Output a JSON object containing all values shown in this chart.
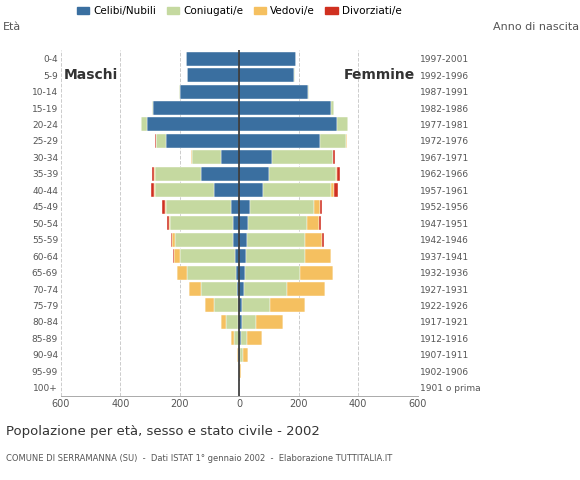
{
  "age_groups": [
    "100+",
    "95-99",
    "90-94",
    "85-89",
    "80-84",
    "75-79",
    "70-74",
    "65-69",
    "60-64",
    "55-59",
    "50-54",
    "45-49",
    "40-44",
    "35-39",
    "30-34",
    "25-29",
    "20-24",
    "15-19",
    "10-14",
    "5-9",
    "0-4"
  ],
  "birth_years": [
    "1901 o prima",
    "1902-1906",
    "1907-1911",
    "1912-1916",
    "1917-1921",
    "1922-1926",
    "1927-1931",
    "1932-1936",
    "1937-1941",
    "1942-1946",
    "1947-1951",
    "1952-1956",
    "1957-1961",
    "1962-1966",
    "1967-1971",
    "1972-1976",
    "1977-1981",
    "1982-1986",
    "1987-1991",
    "1992-1996",
    "1997-2001"
  ],
  "males": {
    "celibe": [
      0,
      0,
      0,
      2,
      3,
      5,
      8,
      10,
      15,
      20,
      22,
      28,
      85,
      130,
      60,
      245,
      310,
      290,
      200,
      175,
      180
    ],
    "coniugato": [
      0,
      0,
      5,
      15,
      40,
      80,
      120,
      165,
      185,
      195,
      210,
      220,
      200,
      155,
      100,
      35,
      20,
      5,
      2,
      1,
      0
    ],
    "vedovo": [
      0,
      0,
      3,
      10,
      20,
      30,
      40,
      35,
      20,
      10,
      5,
      3,
      2,
      1,
      1,
      0,
      0,
      0,
      0,
      0,
      0
    ],
    "divorziato": [
      0,
      0,
      0,
      0,
      0,
      0,
      0,
      0,
      2,
      3,
      5,
      8,
      10,
      8,
      3,
      2,
      0,
      0,
      0,
      0,
      0
    ]
  },
  "females": {
    "nubile": [
      0,
      0,
      3,
      5,
      8,
      10,
      15,
      20,
      22,
      25,
      28,
      35,
      80,
      100,
      110,
      270,
      330,
      310,
      230,
      185,
      190
    ],
    "coniugata": [
      0,
      0,
      8,
      20,
      50,
      95,
      145,
      185,
      200,
      195,
      200,
      215,
      230,
      225,
      205,
      90,
      35,
      8,
      3,
      1,
      0
    ],
    "vedova": [
      0,
      5,
      18,
      50,
      90,
      115,
      130,
      110,
      85,
      60,
      40,
      20,
      10,
      5,
      2,
      1,
      0,
      0,
      0,
      0,
      0
    ],
    "divorziata": [
      0,
      0,
      0,
      0,
      0,
      0,
      0,
      0,
      2,
      5,
      8,
      10,
      12,
      8,
      5,
      2,
      1,
      0,
      0,
      0,
      0
    ]
  },
  "color_celibe": "#3a6fa0",
  "color_coniugato": "#c5d9a0",
  "color_vedovo": "#f5c060",
  "color_divorziato": "#d03020",
  "xlim": 600,
  "title": "Popolazione per età, sesso e stato civile - 2002",
  "subtitle": "COMUNE DI SERRAMANNA (SU)  -  Dati ISTAT 1° gennaio 2002  -  Elaborazione TUTTITALIA.IT",
  "ylabel_left": "Età",
  "ylabel_right": "Anno di nascita",
  "legend_labels": [
    "Celibi/Nubili",
    "Coniugati/e",
    "Vedovi/e",
    "Divorziati/e"
  ],
  "bg": "#ffffff",
  "grid_color": "#cccccc",
  "spine_color": "#aaaaaa",
  "text_color": "#555555",
  "label_color": "#333333"
}
